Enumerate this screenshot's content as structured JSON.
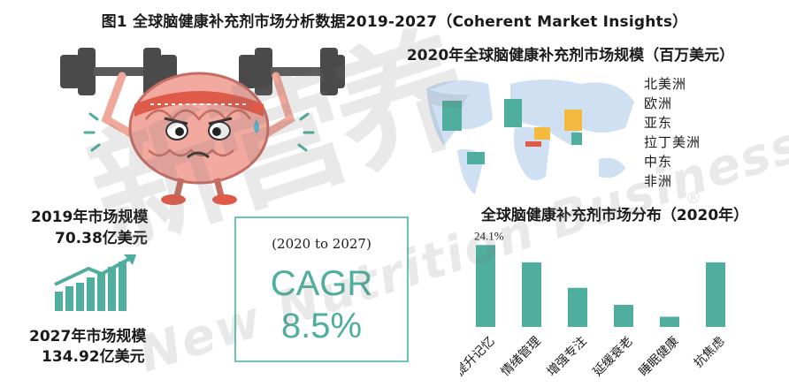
{
  "title": "图1 全球脑健康补充剂市场分析数据2019-2027（Coherent Market Insights）",
  "map": {
    "title": "2020年全球脑健康补充剂市场规模（百万美元）",
    "legend": [
      "北美洲",
      "欧洲",
      "亚东",
      "拉丁美洲",
      "中东",
      "非洲"
    ],
    "colors": {
      "north_america": "#4fae9e",
      "europe": "#4fae9e",
      "asia": "#f4b93f",
      "latin_america": "#4fae9e",
      "middle_east": "#e05a4a",
      "africa": "#4fae9e"
    }
  },
  "stats": {
    "y2019_label": "2019年市场规模",
    "y2019_value": "70.38亿美元",
    "y2027_label": "2027年市场规模",
    "y2027_value": "134.92亿美元"
  },
  "cagr": {
    "period": "(2020 to 2027)",
    "label": "CAGR",
    "value": "8.5%"
  },
  "watermark": {
    "brand": "新营养",
    "text": "New Nutrition Business",
    "mark": "®"
  },
  "chart_data": {
    "type": "bar",
    "title": "全球脑健康补充剂市场分布（2020年）",
    "categories": [
      "提升记忆",
      "情绪管理",
      "增强专注",
      "延缓衰老",
      "睡眠健康",
      "抗焦虑"
    ],
    "values": [
      24.1,
      19.0,
      11.5,
      6.5,
      3.0,
      19.0
    ],
    "data_labels": [
      "24.1%",
      "",
      "",
      "",
      "",
      ""
    ],
    "bar_color": "#4fae9e",
    "ylim": [
      0,
      26
    ],
    "grid": false
  }
}
